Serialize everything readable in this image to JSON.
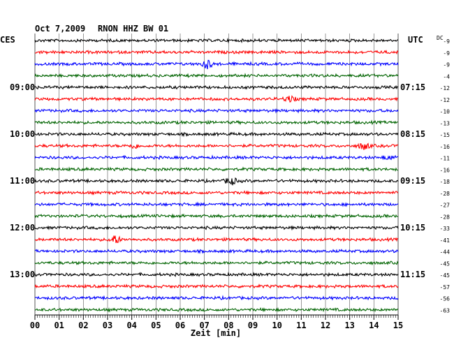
{
  "header": {
    "date": "Oct 7,2009",
    "station": "RNON HHZ BW 01",
    "left_tz": "CES",
    "right_tz": "UTC",
    "dc_label": "DC"
  },
  "colors": {
    "series": [
      "#000000",
      "#ff0000",
      "#0000ff",
      "#006400"
    ],
    "grid": "#000000",
    "background": "#ffffff"
  },
  "chart_data": {
    "type": "line",
    "title": "Oct 7,2009   RNON HHZ BW 01",
    "xlabel": "Zeit [min]",
    "xlim": [
      0,
      15
    ],
    "x_ticks": [
      "00",
      "01",
      "02",
      "03",
      "04",
      "05",
      "06",
      "07",
      "08",
      "09",
      "10",
      "11",
      "12",
      "13",
      "14",
      "15"
    ],
    "trace_count": 24,
    "trace_interval_min": 15,
    "left_time_labels": [
      {
        "trace": 4,
        "label": "09:00"
      },
      {
        "trace": 8,
        "label": "10:00"
      },
      {
        "trace": 12,
        "label": "11:00"
      },
      {
        "trace": 16,
        "label": "12:00"
      },
      {
        "trace": 20,
        "label": "13:00"
      }
    ],
    "right_time_labels": [
      {
        "trace": 4,
        "label": "07:15"
      },
      {
        "trace": 8,
        "label": "08:15"
      },
      {
        "trace": 12,
        "label": "09:15"
      },
      {
        "trace": 16,
        "label": "10:15"
      },
      {
        "trace": 20,
        "label": "11:15"
      }
    ],
    "dc_offsets": [
      "-9",
      "-9",
      "-9",
      "-4",
      "-12",
      "-12",
      "-10",
      "-13",
      "-15",
      "-16",
      "-11",
      "-16",
      "-18",
      "-28",
      "-27",
      "-28",
      "-33",
      "-41",
      "-44",
      "-45",
      "-45",
      "-57",
      "-56",
      "-63"
    ],
    "events": [
      {
        "trace": 2,
        "minute": 7.1,
        "amplitude": 6
      },
      {
        "trace": 5,
        "minute": 10.5,
        "amplitude": 4
      },
      {
        "trace": 9,
        "minute": 13.6,
        "amplitude": 5
      },
      {
        "trace": 9,
        "minute": 4.1,
        "amplitude": 3
      },
      {
        "trace": 12,
        "minute": 8.1,
        "amplitude": 5
      },
      {
        "trace": 17,
        "minute": 3.3,
        "amplitude": 6
      },
      {
        "trace": 10,
        "minute": 14.6,
        "amplitude": 3
      }
    ]
  }
}
